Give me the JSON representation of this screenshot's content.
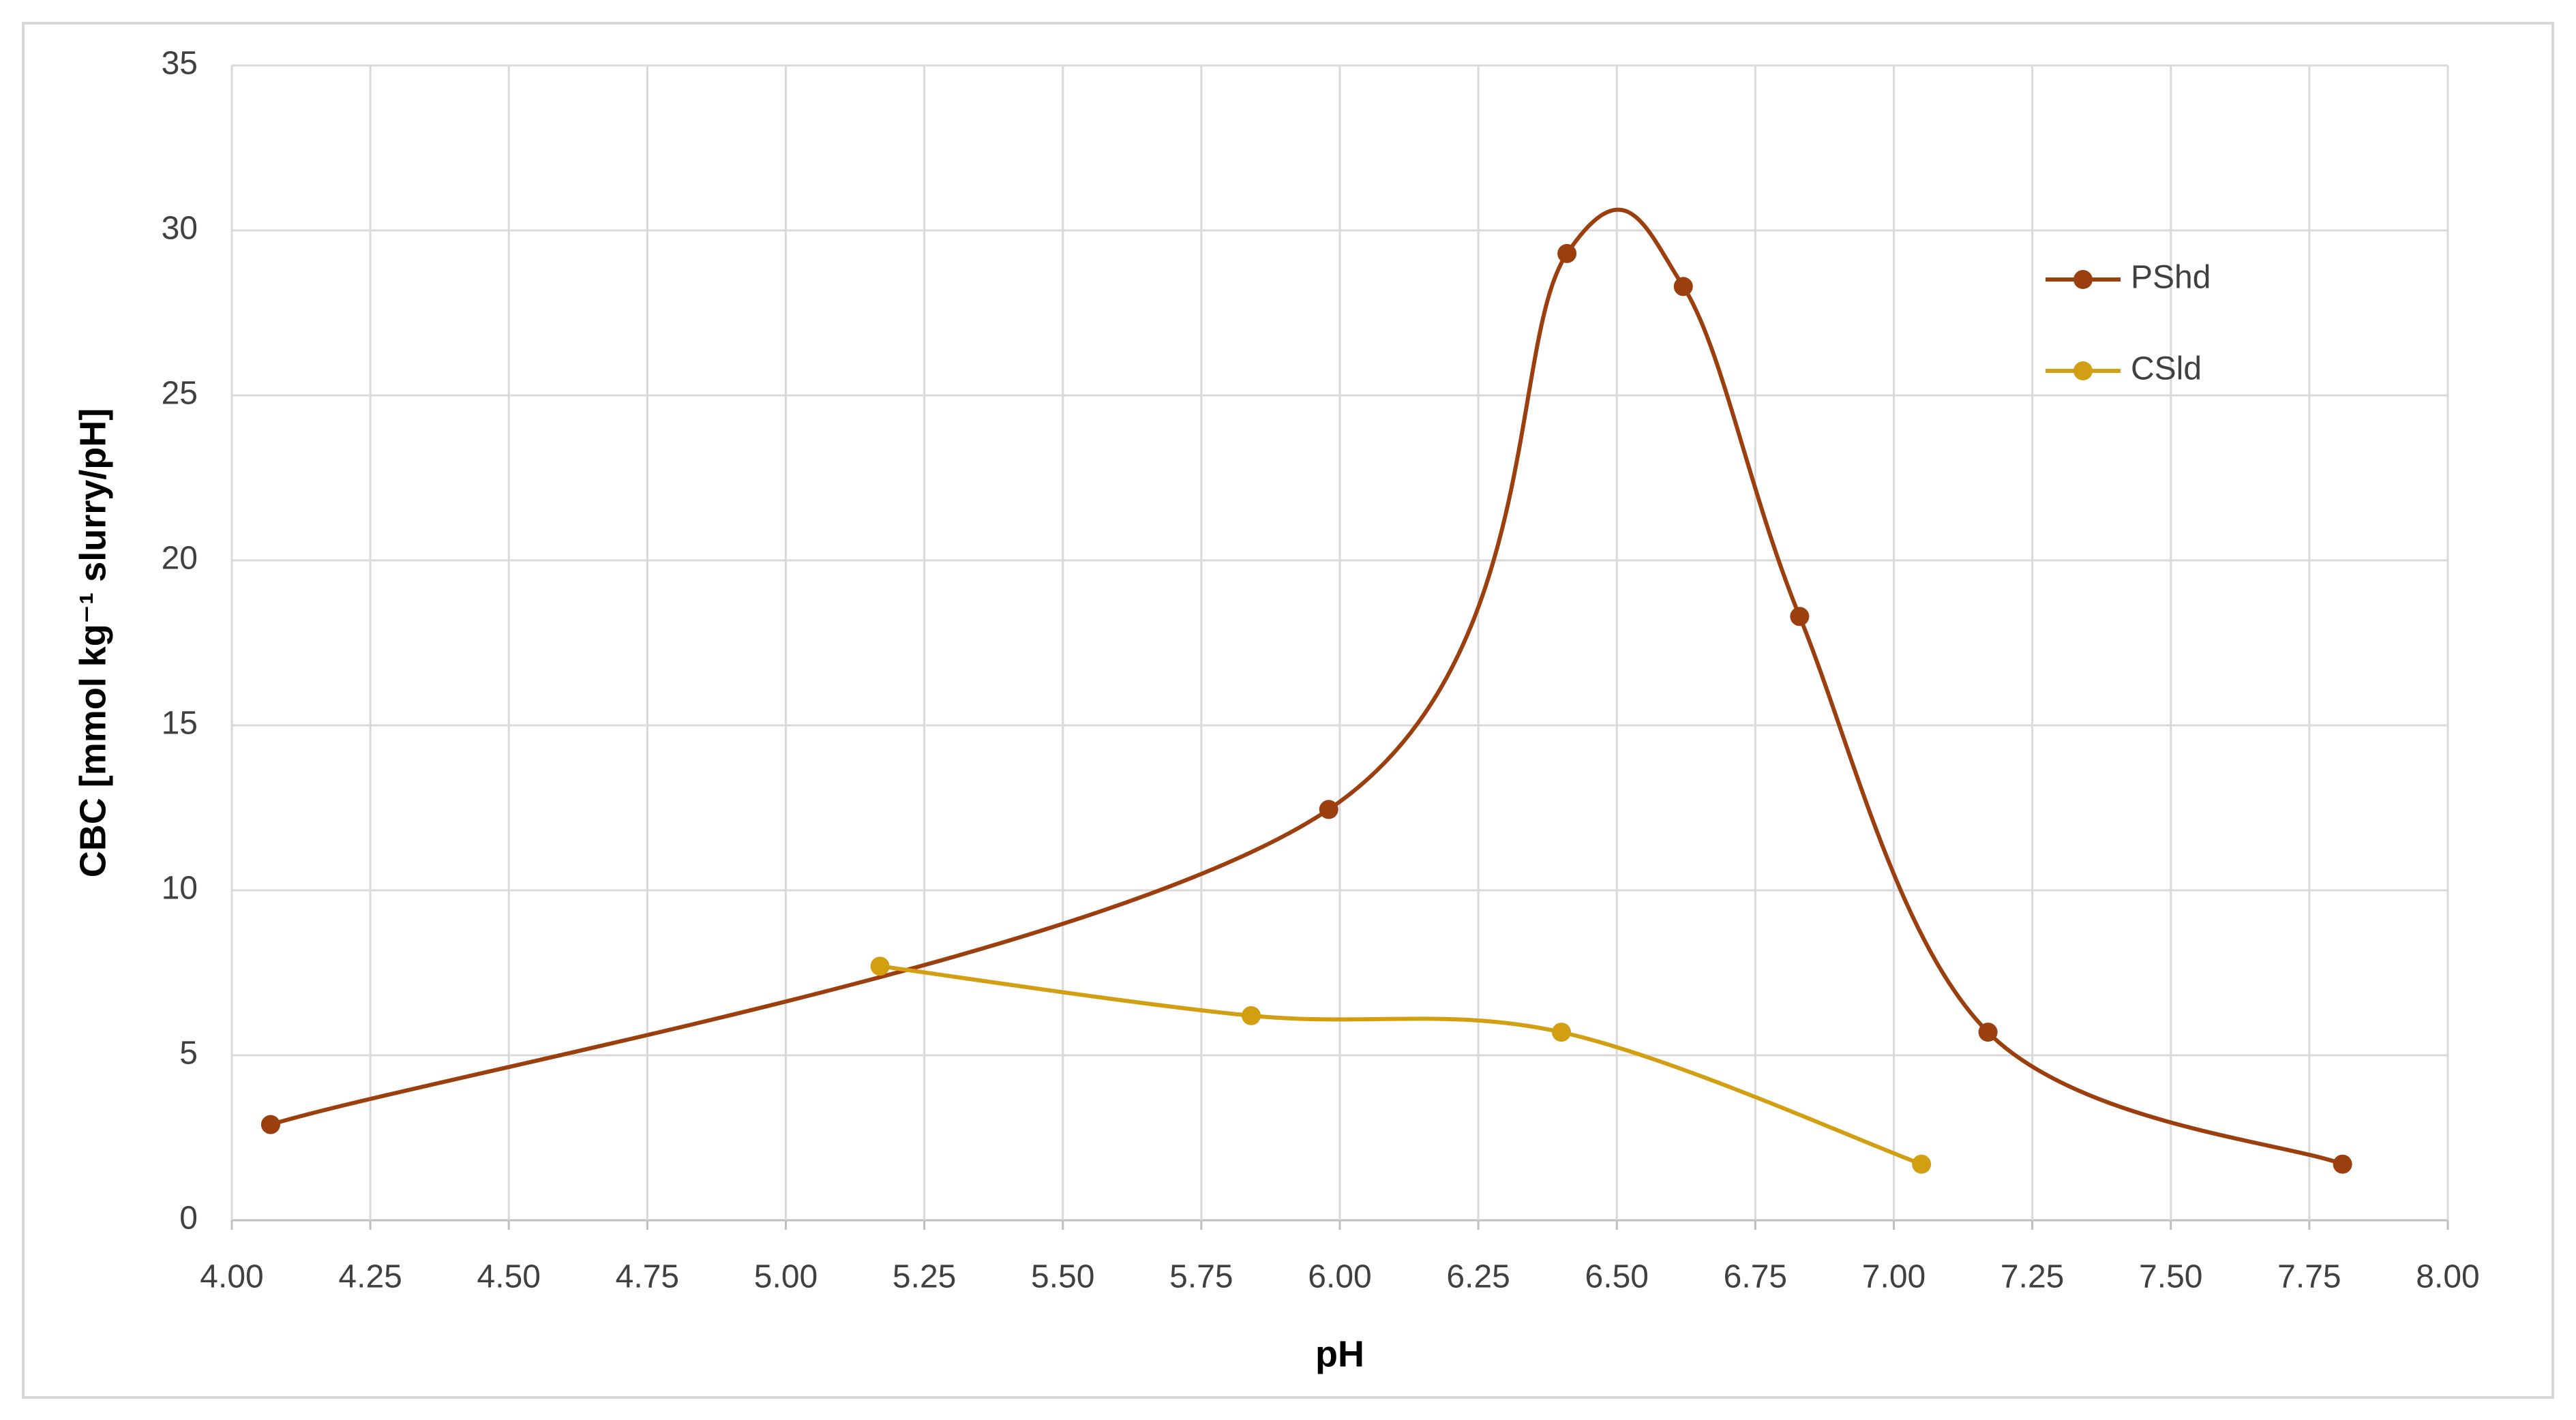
{
  "chart_data": {
    "type": "line",
    "x_label": "pH",
    "y_label": "CBC [mmol kg⁻¹ slurry/pH]",
    "xlim": [
      4,
      8
    ],
    "xticks": [
      {
        "value": 4,
        "label": "4.00"
      },
      {
        "value": 4.25,
        "label": "4.25"
      },
      {
        "value": 4.5,
        "label": "4.50"
      },
      {
        "value": 4.75,
        "label": "4.75"
      },
      {
        "value": 5,
        "label": "5.00"
      },
      {
        "value": 5.25,
        "label": "5.25"
      },
      {
        "value": 5.5,
        "label": "5.50"
      },
      {
        "value": 5.75,
        "label": "5.75"
      },
      {
        "value": 6,
        "label": "6.00"
      },
      {
        "value": 6.25,
        "label": "6.25"
      },
      {
        "value": 6.5,
        "label": "6.50"
      },
      {
        "value": 6.75,
        "label": "6.75"
      },
      {
        "value": 7,
        "label": "7.00"
      },
      {
        "value": 7.25,
        "label": "7.25"
      },
      {
        "value": 7.5,
        "label": "7.50"
      },
      {
        "value": 7.75,
        "label": "7.75"
      },
      {
        "value": 8,
        "label": "8.00"
      }
    ],
    "ylim": [
      0,
      35
    ],
    "yticks": [
      0,
      5,
      10,
      15,
      20,
      25,
      30,
      35
    ],
    "grid": true,
    "smooth": true,
    "legend": "upper right",
    "series": [
      {
        "name": "PShd",
        "color": "#9c3f0f",
        "x": [
          4.07,
          5.98,
          6.41,
          6.62,
          6.83,
          7.17,
          7.81
        ],
        "values": [
          2.9,
          12.45,
          29.3,
          28.3,
          18.3,
          5.7,
          1.7
        ]
      },
      {
        "name": "CSld",
        "color": "#d29e12",
        "x": [
          5.17,
          5.84,
          6.4,
          7.05
        ],
        "values": [
          7.7,
          6.2,
          5.7,
          1.7
        ]
      }
    ]
  }
}
